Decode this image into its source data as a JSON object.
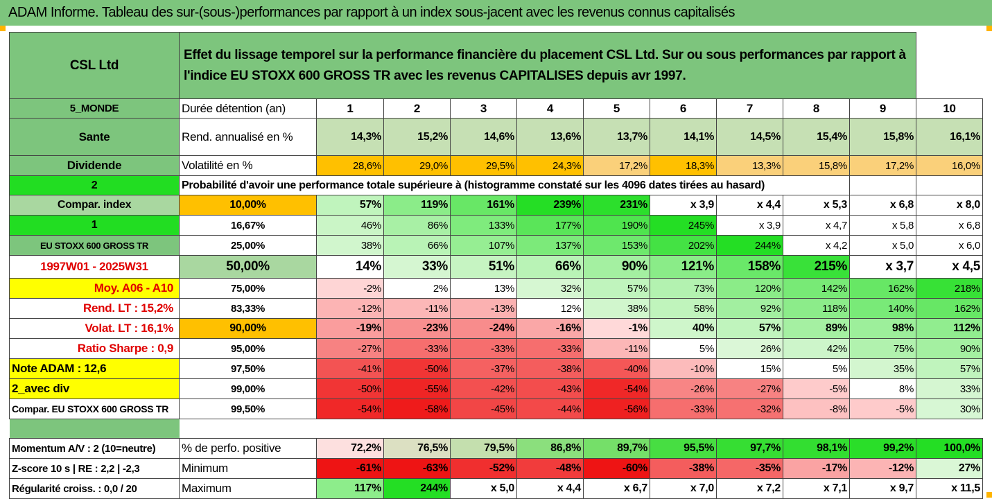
{
  "title": "ADAM Informe. Tableau des sur-(sous-)performances par rapport à un index sous-jacent avec les revenus connus capitalisés",
  "header": {
    "company": "CSL Ltd",
    "description": "Effet du lissage temporel sur la performance financière du placement CSL Ltd. Sur ou sous performances par rapport à l'indice EU STOXX 600 GROSS TR avec les revenus CAPITALISES depuis avr 1997."
  },
  "rows": {
    "duration": {
      "side": "5_MONDE",
      "label": "Durée détention (an)",
      "values": [
        "1",
        "2",
        "3",
        "4",
        "5",
        "6",
        "7",
        "8",
        "9",
        "10"
      ]
    },
    "rend": {
      "side": "Sante",
      "label": "Rend. annualisé en %",
      "values": [
        "14,3%",
        "15,2%",
        "14,6%",
        "13,6%",
        "13,7%",
        "14,1%",
        "14,5%",
        "15,4%",
        "15,8%",
        "16,1%"
      ]
    },
    "vol": {
      "side": "Dividende",
      "label": "Volatilité en %",
      "values": [
        "28,6%",
        "29,0%",
        "29,5%",
        "24,3%",
        "17,2%",
        "18,3%",
        "13,3%",
        "15,8%",
        "17,2%",
        "16,0%"
      ]
    },
    "prob": {
      "side": "2",
      "label": "Probabilité d'avoir une performance totale supérieure à (histogramme constaté sur les 4096 dates tirées au hasard)"
    }
  },
  "grid": [
    {
      "side": "Compar. index",
      "pct": "10,00%",
      "values": [
        "57%",
        "119%",
        "161%",
        "239%",
        "231%",
        "x 3,9",
        "x 4,4",
        "x 5,3",
        "x 6,8",
        "x 8,0"
      ]
    },
    {
      "side": "1",
      "pct": "16,67%",
      "values": [
        "46%",
        "86%",
        "133%",
        "177%",
        "190%",
        "245%",
        "x 3,9",
        "x 4,7",
        "x 5,8",
        "x 6,8"
      ]
    },
    {
      "side": "EU STOXX 600 GROSS TR",
      "pct": "25,00%",
      "values": [
        "38%",
        "66%",
        "107%",
        "137%",
        "153%",
        "202%",
        "244%",
        "x 4,2",
        "x 5,0",
        "x 6,0"
      ]
    },
    {
      "side": "1997W01 - 2025W31",
      "pct": "50,00%",
      "values": [
        "14%",
        "33%",
        "51%",
        "66%",
        "90%",
        "121%",
        "158%",
        "215%",
        "x 3,7",
        "x 4,5"
      ]
    },
    {
      "side": "Moy. A06 - A10",
      "pct": "75,00%",
      "values": [
        "-2%",
        "2%",
        "13%",
        "32%",
        "57%",
        "73%",
        "120%",
        "142%",
        "162%",
        "218%"
      ]
    },
    {
      "side": "Rend. LT :   15,2%",
      "pct": "83,33%",
      "values": [
        "-12%",
        "-11%",
        "-13%",
        "12%",
        "38%",
        "58%",
        "92%",
        "118%",
        "140%",
        "162%"
      ]
    },
    {
      "side": "Volat. LT :   16,1%",
      "pct": "90,00%",
      "values": [
        "-19%",
        "-23%",
        "-24%",
        "-16%",
        "-1%",
        "40%",
        "57%",
        "89%",
        "98%",
        "112%"
      ]
    },
    {
      "side": "Ratio Sharpe :    0,9",
      "pct": "95,00%",
      "values": [
        "-27%",
        "-33%",
        "-33%",
        "-33%",
        "-11%",
        "5%",
        "26%",
        "42%",
        "75%",
        "90%"
      ]
    },
    {
      "side": "Note ADAM : 12,6",
      "pct": "97,50%",
      "values": [
        "-41%",
        "-50%",
        "-37%",
        "-38%",
        "-40%",
        "-10%",
        "15%",
        "5%",
        "35%",
        "57%"
      ]
    },
    {
      "side": "2_avec div",
      "pct": "99,00%",
      "values": [
        "-50%",
        "-55%",
        "-42%",
        "-43%",
        "-54%",
        "-26%",
        "-27%",
        "-5%",
        "8%",
        "33%"
      ]
    },
    {
      "side": "Compar. EU STOXX 600 GROSS TR",
      "pct": "99,50%",
      "values": [
        "-54%",
        "-58%",
        "-45%",
        "-44%",
        "-56%",
        "-33%",
        "-32%",
        "-8%",
        "-5%",
        "30%"
      ]
    }
  ],
  "footer": [
    {
      "side": "Momentum A/V : 2 (10=neutre)",
      "label": "% de perfo. positive",
      "values": [
        "72,2%",
        "76,5%",
        "79,5%",
        "86,8%",
        "89,7%",
        "95,5%",
        "97,7%",
        "98,1%",
        "99,2%",
        "100,0%"
      ]
    },
    {
      "side": "Z-score 10 s  | RE : 2,2 | -2,3",
      "label": "Minimum",
      "values": [
        "-61%",
        "-63%",
        "-52%",
        "-48%",
        "-60%",
        "-38%",
        "-35%",
        "-17%",
        "-12%",
        "27%"
      ]
    },
    {
      "side": "Régularité croiss. : 0,0 / 20",
      "label": "Maximum",
      "values": [
        "117%",
        "244%",
        "x 5,0",
        "x 4,4",
        "x 6,7",
        "x 7,0",
        "x 7,2",
        "x 7,1",
        "x 9,7",
        "x 11,5"
      ]
    }
  ],
  "colors": {
    "green_header": "#7dc57d",
    "yellow": "#ffff00",
    "orange": "#ffc000",
    "bright_green": "#22dd22",
    "text_red": "#e00000"
  }
}
